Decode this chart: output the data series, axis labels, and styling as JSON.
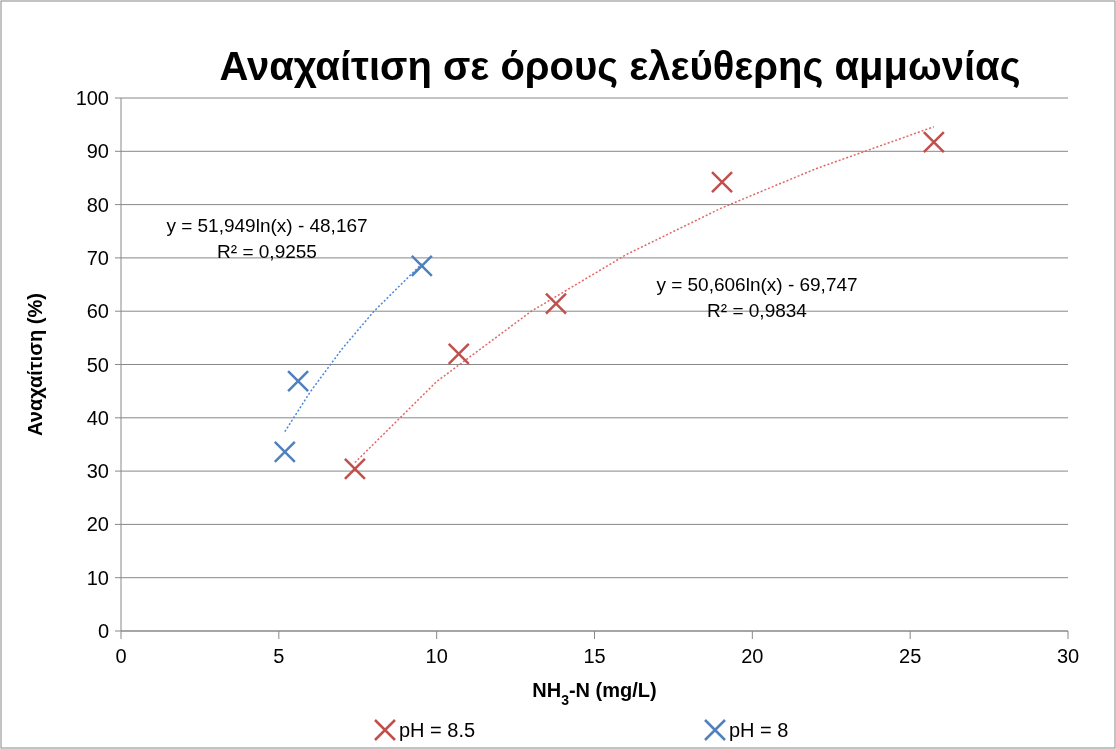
{
  "chart_data": {
    "type": "scatter",
    "title": "Αναχαίτιση σε όρους ελεύθερης αμμωνίας",
    "xlabel": "NH$_{3}$-N (mg/L)",
    "ylabel": "Αναχαίτιση (%)",
    "xlim": [
      0,
      30
    ],
    "xticks": [
      0,
      5,
      10,
      15,
      20,
      25,
      30
    ],
    "ylim": [
      0,
      100
    ],
    "yticks": [
      0,
      10,
      20,
      30,
      40,
      50,
      60,
      70,
      80,
      90,
      100
    ],
    "grid": "y",
    "legend": "bottom",
    "marker": "cross",
    "series": [
      {
        "name": "pH = 8.5",
        "color": "#c0504d",
        "x": [
          7.41,
          10.7,
          13.78,
          19.04,
          25.75
        ],
        "values": [
          30.4,
          52.0,
          61.4,
          84.2,
          91.7
        ]
      },
      {
        "name": "pH = 8",
        "color": "#4f81bd",
        "x": [
          5.19,
          5.61,
          9.53
        ],
        "values": [
          33.6,
          46.9,
          68.5
        ]
      },
      {
        "type": "line",
        "color": "#e06666",
        "line_style": "dotted",
        "marker": "none",
        "x": [
          7.41,
          10,
          13,
          16,
          19,
          22,
          25.75
        ],
        "values": [
          31.6,
          46.8,
          60.0,
          70.6,
          79.3,
          86.7,
          94.6
        ]
      },
      {
        "type": "line",
        "color": "#4a86d8",
        "line_style": "dotted",
        "marker": "none",
        "x": [
          5.19,
          6,
          7,
          8,
          9.53
        ],
        "values": [
          37.4,
          44.9,
          52.9,
          59.9,
          68.9
        ]
      }
    ],
    "annotations": [
      "y = 51,949ln(x) - 48,167\nR² = 0,9255",
      "y = 50,606ln(x) - 69,747\nR² = 0,9834"
    ]
  }
}
